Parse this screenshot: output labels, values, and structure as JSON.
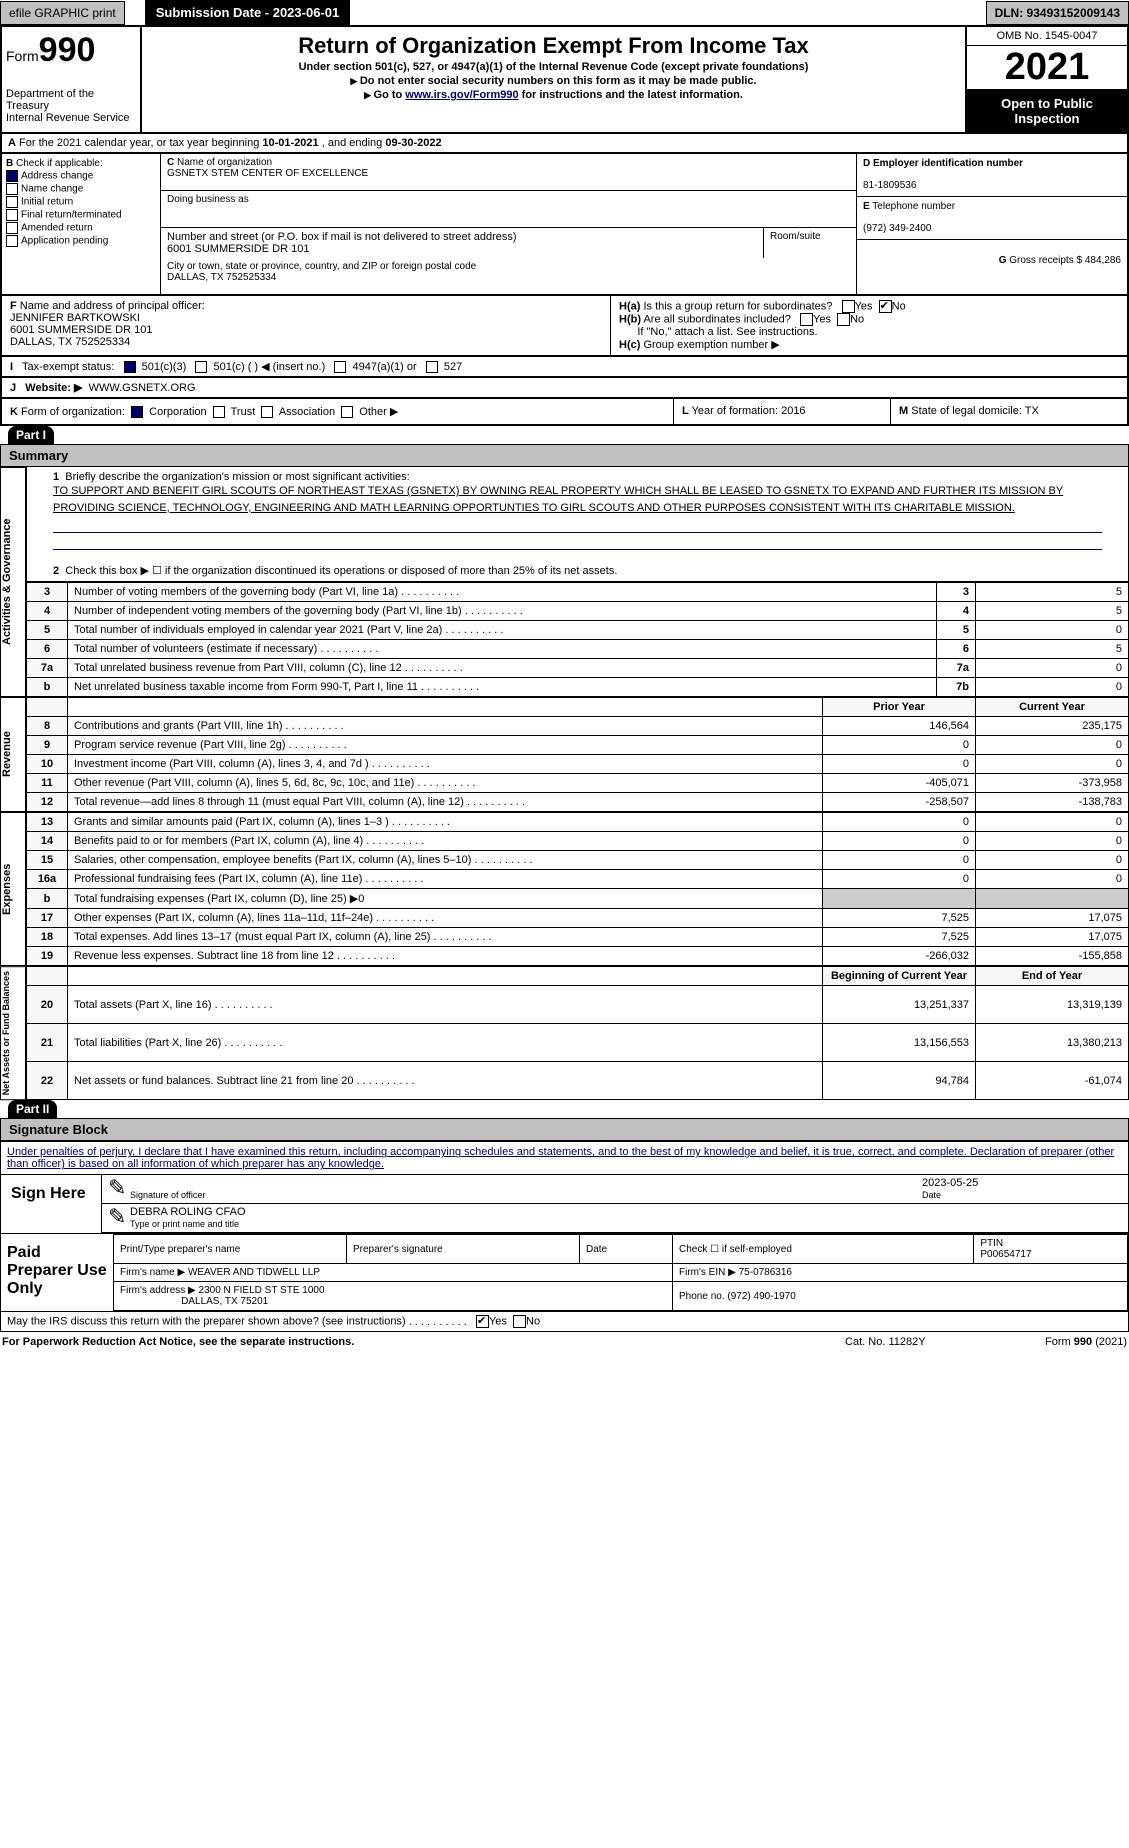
{
  "top": {
    "efile": "efile GRAPHIC print",
    "sub_date": "Submission Date - 2023-06-01",
    "dln": "DLN: 93493152009143"
  },
  "header": {
    "form": "990",
    "form_prefix": "Form",
    "title": "Return of Organization Exempt From Income Tax",
    "subtitle": "Under section 501(c), 527, or 4947(a)(1) of the Internal Revenue Code (except private foundations)",
    "warn": "Do not enter social security numbers on this form as it may be made public.",
    "goto_pre": "Go to ",
    "goto_link": "www.irs.gov/Form990",
    "goto_post": " for instructions and the latest information.",
    "dept": "Department of the Treasury",
    "irs": "Internal Revenue Service",
    "omb": "OMB No. 1545-0047",
    "year": "2021",
    "open": "Open to Public Inspection"
  },
  "A": {
    "label": "For the 2021 calendar year, or tax year beginning ",
    "begin": "10-01-2021",
    "mid": " , and ending ",
    "end": "09-30-2022"
  },
  "B": {
    "label": "Check if applicable:",
    "addr_change": "Address change",
    "name_change": "Name change",
    "initial": "Initial return",
    "final": "Final return/terminated",
    "amended": "Amended return",
    "app_pending": "Application pending",
    "checked": {
      "addr_change": true
    }
  },
  "C": {
    "name_lbl": "Name of organization",
    "name": "GSNETX STEM CENTER OF EXCELLENCE",
    "dba_lbl": "Doing business as",
    "dba": "",
    "street_lbl": "Number and street (or P.O. box if mail is not delivered to street address)",
    "room_lbl": "Room/suite",
    "street": "6001 SUMMERSIDE DR 101",
    "city_lbl": "City or town, state or province, country, and ZIP or foreign postal code",
    "city": "DALLAS, TX  752525334"
  },
  "D": {
    "ein_lbl": "Employer identification number",
    "ein": "81-1809536"
  },
  "E": {
    "tel_lbl": "Telephone number",
    "tel": "(972) 349-2400"
  },
  "G": {
    "gross_lbl": "Gross receipts $",
    "gross": "484,286"
  },
  "F": {
    "lbl": "Name and address of principal officer:",
    "name": "JENNIFER BARTKOWSKI",
    "addr1": "6001 SUMMERSIDE DR 101",
    "addr2": "DALLAS, TX  752525334"
  },
  "H": {
    "a": "Is this a group return for subordinates?",
    "b": "Are all subordinates included?",
    "b_note": "If \"No,\" attach a list. See instructions.",
    "c": "Group exemption number ▶",
    "ha_no": true
  },
  "I": {
    "lbl": "Tax-exempt status:",
    "a": "501(c)(3)",
    "b": "501(c) (  ) ◀ (insert no.)",
    "c": "4947(a)(1) or",
    "d": "527",
    "checked_a": true
  },
  "J": {
    "lbl": "Website: ▶",
    "val": "WWW.GSNETX.ORG"
  },
  "K": {
    "lbl": "Form of organization:",
    "corp": "Corporation",
    "trust": "Trust",
    "assoc": "Association",
    "other": "Other ▶",
    "checked_corp": true
  },
  "L": {
    "lbl": "Year of formation:",
    "val": "2016"
  },
  "M": {
    "lbl": "State of legal domicile:",
    "val": "TX"
  },
  "part1": {
    "num": "Part I",
    "title": "Summary"
  },
  "mission": {
    "lbl": "Briefly describe the organization's mission or most significant activities:",
    "text": "TO SUPPORT AND BENEFIT GIRL SCOUTS OF NORTHEAST TEXAS (GSNETX) BY OWNING REAL PROPERTY WHICH SHALL BE LEASED TO GSNETX TO EXPAND AND FURTHER ITS MISSION BY PROVIDING SCIENCE, TECHNOLOGY, ENGINEERING AND MATH LEARNING OPPORTUNTIES TO GIRL SCOUTS AND OTHER PURPOSES CONSISTENT WITH ITS CHARITABLE MISSION."
  },
  "line2": "Check this box ▶ ☐ if the organization discontinued its operations or disposed of more than 25% of its net assets.",
  "sidelabels": {
    "a": "Activities & Governance",
    "b": "Revenue",
    "c": "Expenses",
    "d": "Net Assets or Fund Balances"
  },
  "gov_rows": [
    {
      "n": "3",
      "t": "Number of voting members of the governing body (Part VI, line 1a)",
      "c2": "3",
      "v": "5"
    },
    {
      "n": "4",
      "t": "Number of independent voting members of the governing body (Part VI, line 1b)",
      "c2": "4",
      "v": "5"
    },
    {
      "n": "5",
      "t": "Total number of individuals employed in calendar year 2021 (Part V, line 2a)",
      "c2": "5",
      "v": "0"
    },
    {
      "n": "6",
      "t": "Total number of volunteers (estimate if necessary)",
      "c2": "6",
      "v": "5"
    },
    {
      "n": "7a",
      "t": "Total unrelated business revenue from Part VIII, column (C), line 12",
      "c2": "7a",
      "v": "0"
    },
    {
      "n": "b",
      "t": "Net unrelated business taxable income from Form 990-T, Part I, line 11",
      "c2": "7b",
      "v": "0"
    }
  ],
  "two_col_hdr": {
    "prior": "Prior Year",
    "current": "Current Year"
  },
  "rev_rows": [
    {
      "n": "8",
      "t": "Contributions and grants (Part VIII, line 1h)",
      "p": "146,564",
      "c": "235,175"
    },
    {
      "n": "9",
      "t": "Program service revenue (Part VIII, line 2g)",
      "p": "0",
      "c": "0"
    },
    {
      "n": "10",
      "t": "Investment income (Part VIII, column (A), lines 3, 4, and 7d )",
      "p": "0",
      "c": "0"
    },
    {
      "n": "11",
      "t": "Other revenue (Part VIII, column (A), lines 5, 6d, 8c, 9c, 10c, and 11e)",
      "p": "-405,071",
      "c": "-373,958"
    },
    {
      "n": "12",
      "t": "Total revenue—add lines 8 through 11 (must equal Part VIII, column (A), line 12)",
      "p": "-258,507",
      "c": "-138,783"
    }
  ],
  "exp_rows": [
    {
      "n": "13",
      "t": "Grants and similar amounts paid (Part IX, column (A), lines 1–3 )",
      "p": "0",
      "c": "0"
    },
    {
      "n": "14",
      "t": "Benefits paid to or for members (Part IX, column (A), line 4)",
      "p": "0",
      "c": "0"
    },
    {
      "n": "15",
      "t": "Salaries, other compensation, employee benefits (Part IX, column (A), lines 5–10)",
      "p": "0",
      "c": "0"
    },
    {
      "n": "16a",
      "t": "Professional fundraising fees (Part IX, column (A), line 11e)",
      "p": "0",
      "c": "0"
    },
    {
      "n": "b",
      "t": "Total fundraising expenses (Part IX, column (D), line 25) ▶0",
      "p": "",
      "c": "",
      "onecol": true
    },
    {
      "n": "17",
      "t": "Other expenses (Part IX, column (A), lines 11a–11d, 11f–24e)",
      "p": "7,525",
      "c": "17,075"
    },
    {
      "n": "18",
      "t": "Total expenses. Add lines 13–17 (must equal Part IX, column (A), line 25)",
      "p": "7,525",
      "c": "17,075"
    },
    {
      "n": "19",
      "t": "Revenue less expenses. Subtract line 18 from line 12",
      "p": "-266,032",
      "c": "-155,858"
    }
  ],
  "na_hdr": {
    "prior": "Beginning of Current Year",
    "current": "End of Year"
  },
  "na_rows": [
    {
      "n": "20",
      "t": "Total assets (Part X, line 16)",
      "p": "13,251,337",
      "c": "13,319,139"
    },
    {
      "n": "21",
      "t": "Total liabilities (Part X, line 26)",
      "p": "13,156,553",
      "c": "13,380,213"
    },
    {
      "n": "22",
      "t": "Net assets or fund balances. Subtract line 21 from line 20",
      "p": "94,784",
      "c": "-61,074"
    }
  ],
  "part2": {
    "num": "Part II",
    "title": "Signature Block"
  },
  "sig": {
    "decl": "Under penalties of perjury, I declare that I have examined this return, including accompanying schedules and statements, and to the best of my knowledge and belief, it is true, correct, and complete. Declaration of preparer (other than officer) is based on all information of which preparer has any knowledge.",
    "sign_here": "Sign Here",
    "sig_of": "Signature of officer",
    "date": "2023-05-25",
    "date_lbl": "Date",
    "typed": "DEBRA ROLING CFAO",
    "typed_lbl": "Type or print name and title"
  },
  "paid": {
    "lbl": "Paid Preparer Use Only",
    "h_name": "Print/Type preparer's name",
    "h_sig": "Preparer's signature",
    "h_date": "Date",
    "h_chk": "Check ☐ if self-employed",
    "h_ptin_lbl": "PTIN",
    "h_ptin": "P00654717",
    "firm_lbl": "Firm's name   ▶",
    "firm": "WEAVER AND TIDWELL LLP",
    "ein_lbl": "Firm's EIN ▶",
    "ein": "75-0786316",
    "addr_lbl": "Firm's address ▶",
    "addr1": "2300 N FIELD ST STE 1000",
    "addr2": "DALLAS, TX  75201",
    "phone_lbl": "Phone no.",
    "phone": "(972) 490-1970"
  },
  "discuss": {
    "q": "May the IRS discuss this return with the preparer shown above? (see instructions)",
    "yes_on": true
  },
  "foot": {
    "a": "For Paperwork Reduction Act Notice, see the separate instructions.",
    "b": "Cat. No. 11282Y",
    "c": "Form 990 (2021)"
  },
  "ui": {
    "yes": "Yes",
    "no": "No",
    "B": "B",
    "C": "C",
    "D": "D",
    "E": "E",
    "F": "F",
    "G": "G",
    "Ha": "H(a)",
    "Hb": "H(b)",
    "Hc": "H(c)",
    "I": "I",
    "J": "J",
    "K": "K",
    "L": "L",
    "M": "M",
    "A": "A",
    "1": "1",
    "2": "2"
  }
}
